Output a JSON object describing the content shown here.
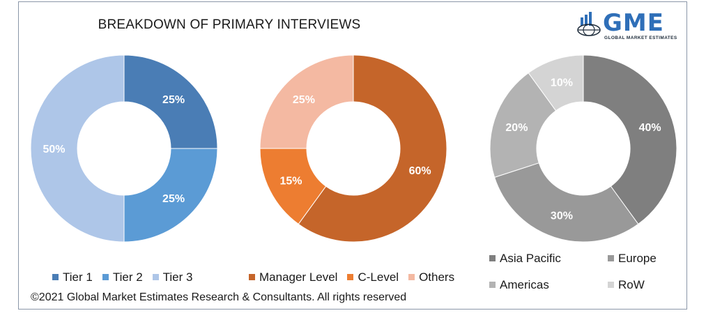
{
  "title": "BREAKDOWN OF PRIMARY INTERVIEWS",
  "logo": {
    "word": "GME",
    "subtitle": "GLOBAL MARKET ESTIMATES",
    "icon": "globe-bars-icon"
  },
  "copyright": "©2021 Global Market Estimates Research & Consultants. All rights reserved",
  "chart_data": [
    {
      "type": "pie",
      "title": "",
      "categories": [
        "Tier 1",
        "Tier 2",
        "Tier 3"
      ],
      "values": [
        25,
        25,
        50
      ],
      "labels": [
        "25%",
        "25%",
        "50%"
      ],
      "colors": [
        "#4a7db5",
        "#5b9bd5",
        "#aec6e8"
      ],
      "legend": "bottom"
    },
    {
      "type": "pie",
      "title": "",
      "categories": [
        "Manager Level",
        "C-Level",
        "Others"
      ],
      "values": [
        60,
        15,
        25
      ],
      "labels": [
        "60%",
        "15%",
        "25%"
      ],
      "colors": [
        "#c5652a",
        "#ed7d31",
        "#f4b9a2"
      ],
      "legend": "bottom"
    },
    {
      "type": "pie",
      "title": "",
      "categories": [
        "Asia Pacific",
        "Europe",
        "Americas",
        "RoW"
      ],
      "values": [
        40,
        30,
        20,
        10
      ],
      "labels": [
        "40%",
        "30%",
        "20%",
        "10%"
      ],
      "colors": [
        "#7f7f7f",
        "#999999",
        "#b3b3b3",
        "#d4d4d4"
      ],
      "legend": "bottom"
    }
  ]
}
